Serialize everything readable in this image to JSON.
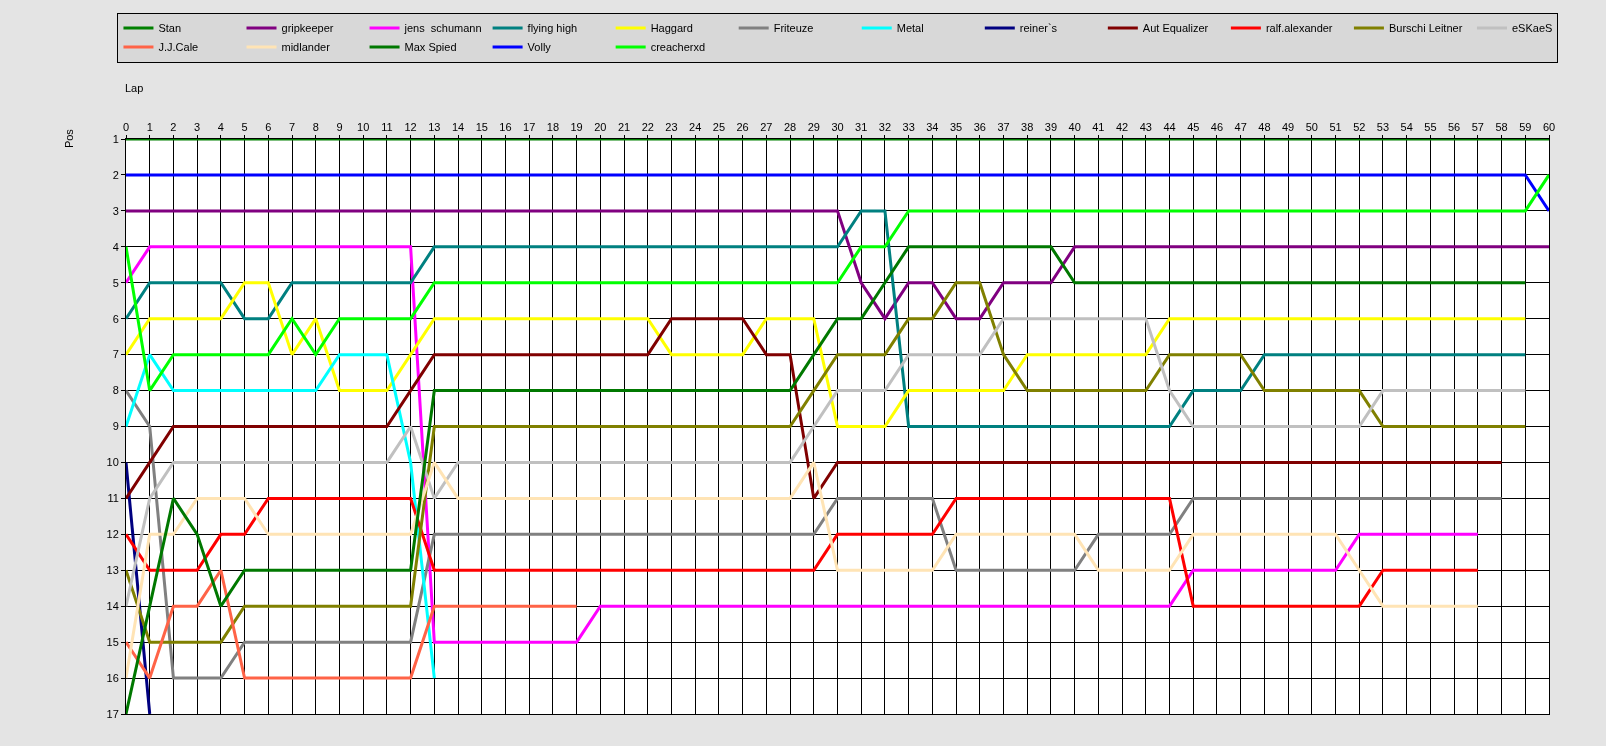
{
  "chart_data": {
    "type": "line",
    "xlabel": "Lap",
    "ylabel": "Pos",
    "x": [
      0,
      1,
      2,
      3,
      4,
      5,
      6,
      7,
      8,
      9,
      10,
      11,
      12,
      13,
      14,
      15,
      16,
      17,
      18,
      19,
      20,
      21,
      22,
      23,
      24,
      25,
      26,
      27,
      28,
      29,
      30,
      31,
      32,
      33,
      34,
      35,
      36,
      37,
      38,
      39,
      40,
      41,
      42,
      43,
      44,
      45,
      46,
      47,
      48,
      49,
      50,
      51,
      52,
      53,
      54,
      55,
      56,
      57,
      58,
      59,
      60
    ],
    "xlim": [
      0,
      60
    ],
    "xticks": [
      0,
      1,
      2,
      3,
      4,
      5,
      6,
      7,
      8,
      9,
      10,
      11,
      12,
      13,
      14,
      15,
      16,
      17,
      18,
      19,
      20,
      21,
      22,
      23,
      24,
      25,
      26,
      27,
      28,
      29,
      30,
      31,
      32,
      33,
      34,
      35,
      36,
      37,
      38,
      39,
      40,
      41,
      42,
      43,
      44,
      45,
      46,
      47,
      48,
      49,
      50,
      51,
      52,
      53,
      54,
      55,
      56,
      57,
      58,
      59,
      60
    ],
    "ylim": [
      17,
      1
    ],
    "yticks": [
      1,
      2,
      3,
      4,
      5,
      6,
      7,
      8,
      9,
      10,
      11,
      12,
      13,
      14,
      15,
      16,
      17
    ],
    "grid": true,
    "legend": "top",
    "marker": "none",
    "line_style": "solid",
    "series": [
      {
        "name": "Stan",
        "color": "#008000",
        "values": [
          1,
          1,
          1,
          1,
          1,
          1,
          1,
          1,
          1,
          1,
          1,
          1,
          1,
          1,
          1,
          1,
          1,
          1,
          1,
          1,
          1,
          1,
          1,
          1,
          1,
          1,
          1,
          1,
          1,
          1,
          1,
          1,
          1,
          1,
          1,
          1,
          1,
          1,
          1,
          1,
          1,
          1,
          1,
          1,
          1,
          1,
          1,
          1,
          1,
          1,
          1,
          1,
          1,
          1,
          1,
          1,
          1,
          1,
          1,
          1,
          1
        ]
      },
      {
        "name": "gripkeeper",
        "color": "#800080",
        "values": [
          3,
          3,
          3,
          3,
          3,
          3,
          3,
          3,
          3,
          3,
          3,
          3,
          3,
          3,
          3,
          3,
          3,
          3,
          3,
          3,
          3,
          3,
          3,
          3,
          3,
          3,
          3,
          3,
          3,
          3,
          3,
          5,
          6,
          5,
          5,
          6,
          6,
          5,
          5,
          5,
          4,
          4,
          4,
          4,
          4,
          4,
          4,
          4,
          4,
          4,
          4,
          4,
          4,
          4,
          4,
          4,
          4,
          4,
          4,
          4,
          4
        ]
      },
      {
        "name": "jens  schumann",
        "color": "#ff00ff",
        "values": [
          5,
          4,
          4,
          4,
          4,
          4,
          4,
          4,
          4,
          4,
          4,
          4,
          4,
          15,
          15,
          15,
          15,
          15,
          15,
          15,
          14,
          14,
          14,
          14,
          14,
          14,
          14,
          14,
          14,
          14,
          14,
          14,
          14,
          14,
          14,
          14,
          14,
          14,
          14,
          14,
          14,
          14,
          14,
          14,
          14,
          13,
          13,
          13,
          13,
          13,
          13,
          13,
          12,
          12,
          12,
          12,
          12,
          12,
          null,
          null,
          null
        ]
      },
      {
        "name": "flying high",
        "color": "#008080",
        "values": [
          6,
          5,
          5,
          5,
          5,
          6,
          6,
          5,
          5,
          5,
          5,
          5,
          5,
          4,
          4,
          4,
          4,
          4,
          4,
          4,
          4,
          4,
          4,
          4,
          4,
          4,
          4,
          4,
          4,
          4,
          4,
          3,
          3,
          9,
          9,
          9,
          9,
          9,
          9,
          9,
          9,
          9,
          9,
          9,
          9,
          8,
          8,
          8,
          7,
          7,
          7,
          7,
          7,
          7,
          7,
          7,
          7,
          7,
          7,
          7,
          null
        ]
      },
      {
        "name": "Haggard",
        "color": "#ffff00",
        "values": [
          7,
          6,
          6,
          6,
          6,
          5,
          5,
          7,
          6,
          8,
          8,
          8,
          7,
          6,
          6,
          6,
          6,
          6,
          6,
          6,
          6,
          6,
          6,
          7,
          7,
          7,
          7,
          6,
          6,
          6,
          9,
          9,
          9,
          8,
          8,
          8,
          8,
          8,
          7,
          7,
          7,
          7,
          7,
          7,
          6,
          6,
          6,
          6,
          6,
          6,
          6,
          6,
          6,
          6,
          6,
          6,
          6,
          6,
          6,
          6,
          null
        ]
      },
      {
        "name": "Friteuze",
        "color": "#808080",
        "values": [
          8,
          9,
          16,
          16,
          16,
          15,
          15,
          15,
          15,
          15,
          15,
          15,
          15,
          12,
          12,
          12,
          12,
          12,
          12,
          12,
          12,
          12,
          12,
          12,
          12,
          12,
          12,
          12,
          12,
          12,
          11,
          11,
          11,
          11,
          11,
          13,
          13,
          13,
          13,
          13,
          13,
          12,
          12,
          12,
          12,
          11,
          11,
          11,
          11,
          11,
          11,
          11,
          11,
          11,
          11,
          11,
          11,
          11,
          11,
          null,
          null
        ]
      },
      {
        "name": "Metal",
        "color": "#00ffff",
        "values": [
          9,
          7,
          8,
          8,
          8,
          8,
          8,
          8,
          8,
          7,
          7,
          7,
          10,
          16,
          null,
          null,
          null,
          null,
          null,
          null,
          null,
          null,
          null,
          null,
          null,
          null,
          null,
          null,
          null,
          null,
          null,
          null,
          null,
          null,
          null,
          null,
          null,
          null,
          null,
          null,
          null,
          null,
          null,
          null,
          null,
          null,
          null,
          null,
          null,
          null,
          null,
          null,
          null,
          null,
          null,
          null,
          null,
          null,
          null,
          null,
          null
        ]
      },
      {
        "name": "reiner`s",
        "color": "#000080",
        "values": [
          10,
          17,
          null,
          null,
          null,
          null,
          null,
          null,
          null,
          null,
          null,
          null,
          null,
          null,
          null,
          null,
          null,
          null,
          null,
          null,
          null,
          null,
          null,
          null,
          null,
          null,
          null,
          null,
          null,
          null,
          null,
          null,
          null,
          null,
          null,
          null,
          null,
          null,
          null,
          null,
          null,
          null,
          null,
          null,
          null,
          null,
          null,
          null,
          null,
          null,
          null,
          null,
          null,
          null,
          null,
          null,
          null,
          null,
          null,
          null,
          null
        ]
      },
      {
        "name": "Aut Equalizer",
        "color": "#800000",
        "values": [
          11,
          10,
          9,
          9,
          9,
          9,
          9,
          9,
          9,
          9,
          9,
          9,
          8,
          7,
          7,
          7,
          7,
          7,
          7,
          7,
          7,
          7,
          7,
          6,
          6,
          6,
          6,
          7,
          7,
          11,
          10,
          10,
          10,
          10,
          10,
          10,
          10,
          10,
          10,
          10,
          10,
          10,
          10,
          10,
          10,
          10,
          10,
          10,
          10,
          10,
          10,
          10,
          10,
          10,
          10,
          10,
          10,
          10,
          10,
          null,
          null
        ]
      },
      {
        "name": "ralf.alexander",
        "color": "#ff0000",
        "values": [
          12,
          13,
          13,
          13,
          12,
          12,
          11,
          11,
          11,
          11,
          11,
          11,
          11,
          13,
          13,
          13,
          13,
          13,
          13,
          13,
          13,
          13,
          13,
          13,
          13,
          13,
          13,
          13,
          13,
          13,
          12,
          12,
          12,
          12,
          12,
          11,
          11,
          11,
          11,
          11,
          11,
          11,
          11,
          11,
          11,
          14,
          14,
          14,
          14,
          14,
          14,
          14,
          14,
          13,
          13,
          13,
          13,
          13,
          null,
          null,
          null
        ]
      },
      {
        "name": "Burschi Leitner",
        "color": "#808000",
        "values": [
          13,
          15,
          15,
          15,
          15,
          14,
          14,
          14,
          14,
          14,
          14,
          14,
          14,
          9,
          9,
          9,
          9,
          9,
          9,
          9,
          9,
          9,
          9,
          9,
          9,
          9,
          9,
          9,
          9,
          8,
          7,
          7,
          7,
          6,
          6,
          5,
          5,
          7,
          8,
          8,
          8,
          8,
          8,
          8,
          7,
          7,
          7,
          7,
          8,
          8,
          8,
          8,
          8,
          9,
          9,
          9,
          9,
          9,
          9,
          9,
          null
        ]
      },
      {
        "name": "eSKaeS",
        "color": "#c0c0c0",
        "values": [
          14,
          11,
          10,
          10,
          10,
          10,
          10,
          10,
          10,
          10,
          10,
          10,
          9,
          11,
          10,
          10,
          10,
          10,
          10,
          10,
          10,
          10,
          10,
          10,
          10,
          10,
          10,
          10,
          10,
          9,
          8,
          8,
          8,
          7,
          7,
          7,
          7,
          6,
          6,
          6,
          6,
          6,
          6,
          6,
          8,
          9,
          9,
          9,
          9,
          9,
          9,
          9,
          9,
          8,
          8,
          8,
          8,
          8,
          8,
          8,
          null
        ]
      },
      {
        "name": "J.J.Cale",
        "color": "#ff6347",
        "values": [
          15,
          16,
          14,
          14,
          13,
          16,
          16,
          16,
          16,
          16,
          16,
          16,
          16,
          14,
          14,
          14,
          14,
          14,
          14,
          14,
          null,
          null,
          null,
          null,
          null,
          null,
          null,
          null,
          null,
          null,
          null,
          null,
          null,
          null,
          null,
          null,
          null,
          null,
          null,
          null,
          null,
          null,
          null,
          null,
          null,
          null,
          null,
          null,
          null,
          null,
          null,
          null,
          null,
          null,
          null,
          null,
          null,
          null,
          null,
          null,
          null
        ]
      },
      {
        "name": "midlander",
        "color": "#ffe4b5",
        "values": [
          16,
          12,
          12,
          11,
          11,
          11,
          12,
          12,
          12,
          12,
          12,
          12,
          12,
          10,
          11,
          11,
          11,
          11,
          11,
          11,
          11,
          11,
          11,
          11,
          11,
          11,
          11,
          11,
          11,
          10,
          13,
          13,
          13,
          13,
          13,
          12,
          12,
          12,
          12,
          12,
          12,
          13,
          13,
          13,
          13,
          12,
          12,
          12,
          12,
          12,
          12,
          12,
          13,
          14,
          14,
          14,
          14,
          14,
          null,
          null,
          null
        ]
      },
      {
        "name": "Max Spied",
        "color": "#007800",
        "values": [
          17,
          14,
          11,
          12,
          14,
          13,
          13,
          13,
          13,
          13,
          13,
          13,
          13,
          8,
          8,
          8,
          8,
          8,
          8,
          8,
          8,
          8,
          8,
          8,
          8,
          8,
          8,
          8,
          8,
          7,
          6,
          6,
          5,
          4,
          4,
          4,
          4,
          4,
          4,
          4,
          5,
          5,
          5,
          5,
          5,
          5,
          5,
          5,
          5,
          5,
          5,
          5,
          5,
          5,
          5,
          5,
          5,
          5,
          5,
          5,
          null
        ]
      },
      {
        "name": "Volly",
        "color": "#0000ff",
        "values": [
          2,
          2,
          2,
          2,
          2,
          2,
          2,
          2,
          2,
          2,
          2,
          2,
          2,
          2,
          2,
          2,
          2,
          2,
          2,
          2,
          2,
          2,
          2,
          2,
          2,
          2,
          2,
          2,
          2,
          2,
          2,
          2,
          2,
          2,
          2,
          2,
          2,
          2,
          2,
          2,
          2,
          2,
          2,
          2,
          2,
          2,
          2,
          2,
          2,
          2,
          2,
          2,
          2,
          2,
          2,
          2,
          2,
          2,
          2,
          2,
          3
        ]
      },
      {
        "name": "creacherxd",
        "color": "#00ff00",
        "values": [
          4,
          8,
          7,
          7,
          7,
          7,
          7,
          6,
          7,
          6,
          6,
          6,
          6,
          5,
          5,
          5,
          5,
          5,
          5,
          5,
          5,
          5,
          5,
          5,
          5,
          5,
          5,
          5,
          5,
          5,
          5,
          4,
          4,
          3,
          3,
          3,
          3,
          3,
          3,
          3,
          3,
          3,
          3,
          3,
          3,
          3,
          3,
          3,
          3,
          3,
          3,
          3,
          3,
          3,
          3,
          3,
          3,
          3,
          3,
          3,
          2
        ]
      }
    ]
  }
}
